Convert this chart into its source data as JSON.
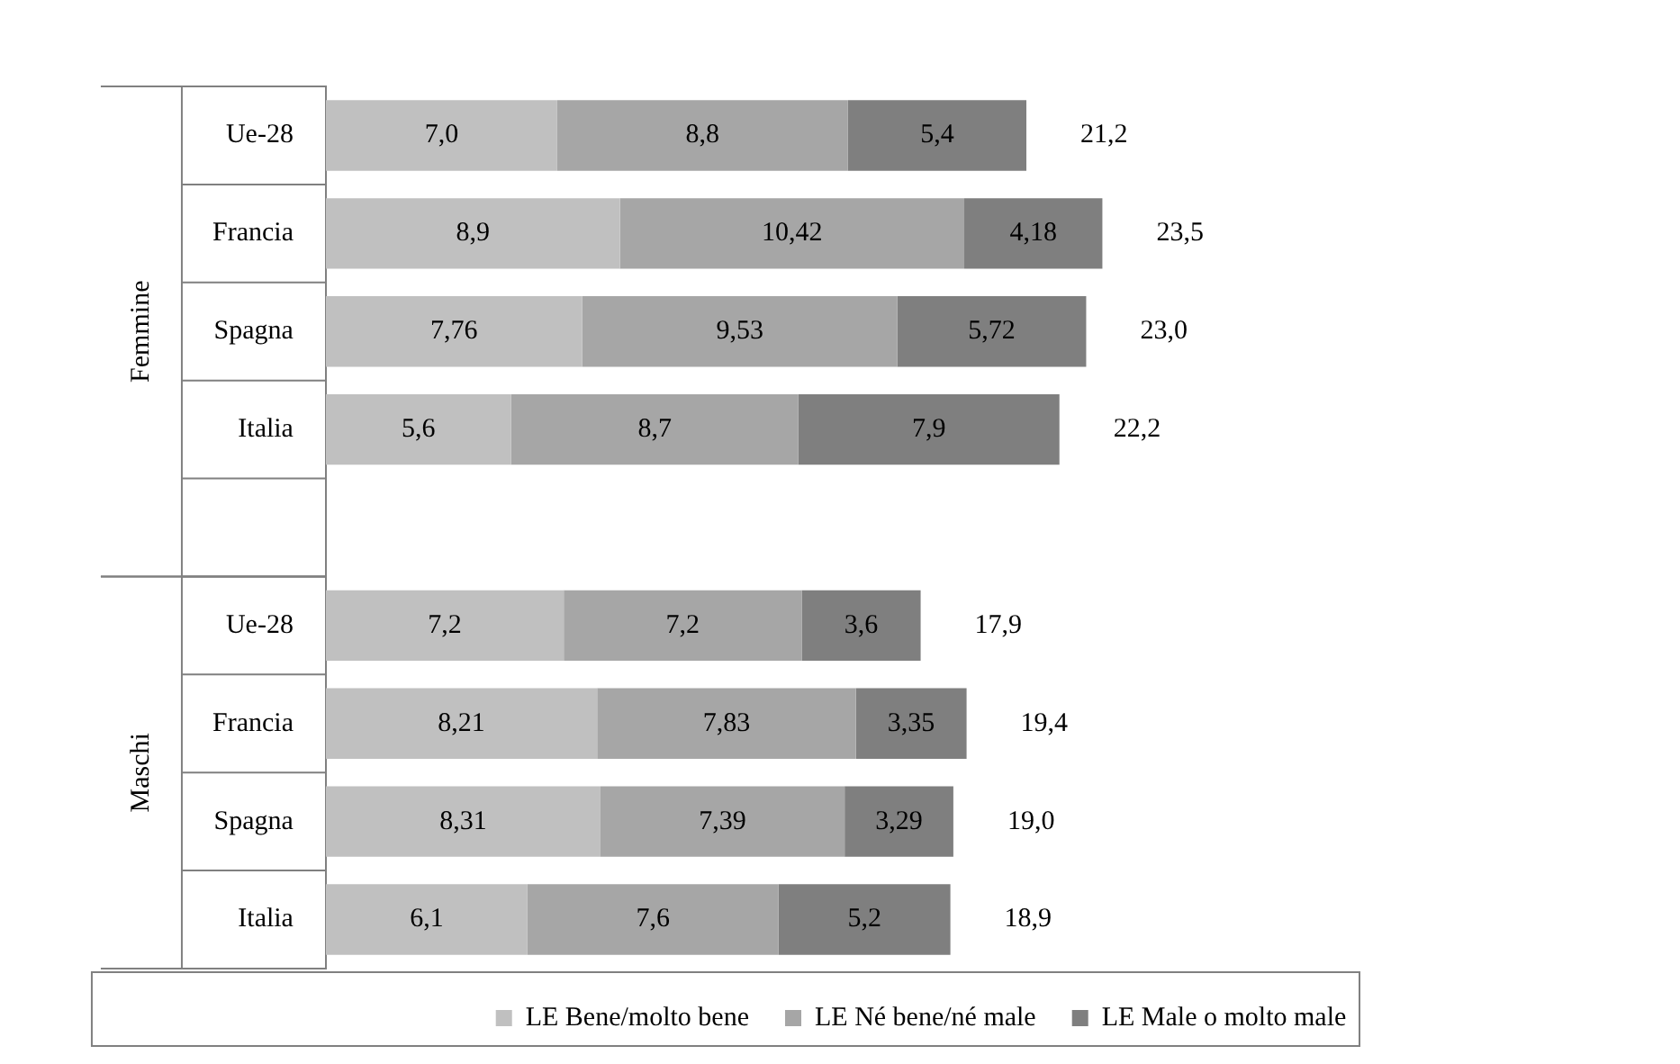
{
  "chart_data": {
    "type": "bar",
    "orientation": "horizontal",
    "stacked": true,
    "categories": [
      "Ue-28",
      "Francia",
      "Spagna",
      "Italia",
      null,
      "Ue-28",
      "Francia",
      "Spagna",
      "Italia"
    ],
    "series": [
      {
        "name": "LE Bene/molto bene",
        "color": "#c0c0c0",
        "values": [
          7.0,
          8.9,
          7.76,
          5.6,
          null,
          7.2,
          8.21,
          8.31,
          6.1
        ],
        "value_labels": [
          "7,0",
          "8,9",
          "7,76",
          "5,6",
          null,
          "7,2",
          "8,21",
          "8,31",
          "6,1"
        ]
      },
      {
        "name": "LE Né bene/né male",
        "color": "#a6a6a6",
        "values": [
          8.8,
          10.42,
          9.53,
          8.7,
          null,
          7.2,
          7.83,
          7.39,
          7.6
        ],
        "value_labels": [
          "8,8",
          "10,42",
          "9,53",
          "8,7",
          null,
          "7,2",
          "7,83",
          "7,39",
          "7,6"
        ]
      },
      {
        "name": "LE Male o molto male",
        "color": "#7f7f7f",
        "values": [
          5.4,
          4.18,
          5.72,
          7.9,
          null,
          3.6,
          3.35,
          3.29,
          5.2
        ],
        "value_labels": [
          "5,4",
          "4,18",
          "5,72",
          "7,9",
          null,
          "3,6",
          "3,35",
          "3,29",
          "5,2"
        ]
      }
    ],
    "totals": [
      "21,2",
      "23,5",
      "23,0",
      "22,2",
      null,
      "17,9",
      "19,4",
      "19,0",
      "18,9"
    ],
    "annotations": [
      "Femmine",
      "Maschi"
    ],
    "legend": "bottom",
    "grid": false
  }
}
